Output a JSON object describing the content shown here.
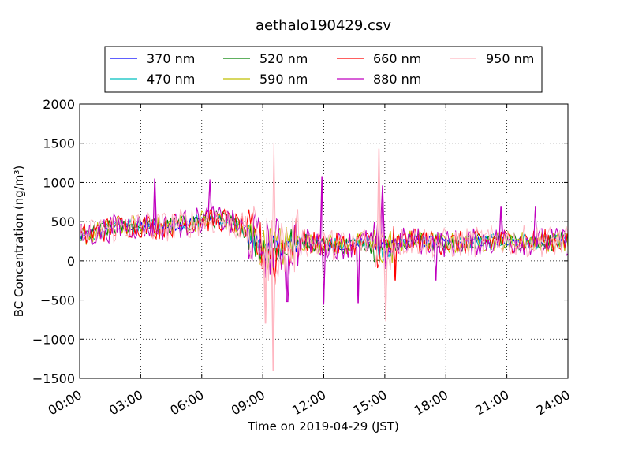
{
  "chart_data": {
    "type": "line",
    "title": "aethalo190429.csv",
    "xlabel": "Time on 2019-04-29 (JST)",
    "ylabel": "BC Concentration (ng/m³)",
    "ylim": [
      -1500,
      2000
    ],
    "xlim": [
      "00:00",
      "24:00"
    ],
    "x_unit": "hours",
    "xticks": [
      "00:00",
      "03:00",
      "06:00",
      "09:00",
      "12:00",
      "15:00",
      "18:00",
      "21:00",
      "24:00"
    ],
    "yticks": [
      "2000",
      "1500",
      "1000",
      "500",
      "0",
      "−500",
      "−1000",
      "−1500"
    ],
    "grid": true,
    "legend_position": "top",
    "series": [
      {
        "name": "370 nm",
        "color": "#0000ff"
      },
      {
        "name": "470 nm",
        "color": "#00bfbf"
      },
      {
        "name": "520 nm",
        "color": "#008000"
      },
      {
        "name": "590 nm",
        "color": "#bfbf00"
      },
      {
        "name": "660 nm",
        "color": "#ff0000"
      },
      {
        "name": "880 nm",
        "color": "#bf00bf"
      },
      {
        "name": "950 nm",
        "color": "#ffb6c1"
      }
    ],
    "baseline": {
      "hours": [
        0,
        1,
        2,
        3,
        4,
        5,
        6,
        7,
        8,
        9,
        10,
        11,
        12,
        13,
        14,
        15,
        16,
        17,
        18,
        19,
        20,
        21,
        22,
        23,
        24
      ],
      "values": [
        300,
        380,
        440,
        450,
        430,
        470,
        520,
        530,
        420,
        150,
        180,
        250,
        210,
        200,
        240,
        160,
        260,
        250,
        220,
        230,
        250,
        260,
        250,
        250,
        240
      ]
    },
    "peaks": [
      {
        "series": "950 nm",
        "hour": 9.55,
        "value": 1500
      },
      {
        "series": "950 nm",
        "hour": 9.5,
        "value": -1400
      },
      {
        "series": "950 nm",
        "hour": 14.7,
        "value": 1430
      },
      {
        "series": "950 nm",
        "hour": 15.05,
        "value": -770
      },
      {
        "series": "950 nm",
        "hour": 9.15,
        "value": -800
      },
      {
        "series": "880 nm",
        "hour": 11.9,
        "value": 1080
      },
      {
        "series": "880 nm",
        "hour": 12.0,
        "value": -560
      },
      {
        "series": "880 nm",
        "hour": 14.9,
        "value": 960
      },
      {
        "series": "880 nm",
        "hour": 3.7,
        "value": 1050
      },
      {
        "series": "880 nm",
        "hour": 6.4,
        "value": 1040
      },
      {
        "series": "880 nm",
        "hour": 10.2,
        "value": -520
      },
      {
        "series": "880 nm",
        "hour": 13.7,
        "value": -540
      },
      {
        "series": "880 nm",
        "hour": 20.7,
        "value": 700
      },
      {
        "series": "880 nm",
        "hour": 22.4,
        "value": 700
      },
      {
        "series": "880 nm",
        "hour": 17.5,
        "value": -250
      },
      {
        "series": "660 nm",
        "hour": 9.6,
        "value": -300
      },
      {
        "series": "660 nm",
        "hour": 15.5,
        "value": -250
      }
    ]
  }
}
